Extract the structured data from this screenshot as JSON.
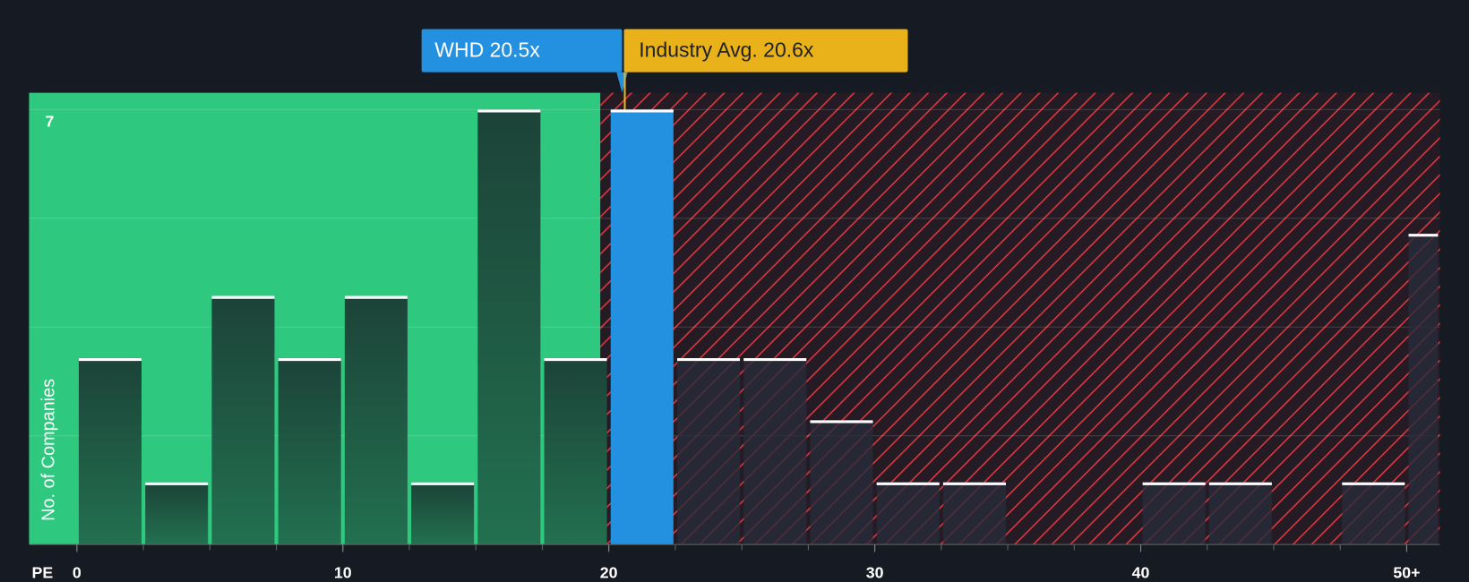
{
  "chart_data": {
    "type": "histogram",
    "xlabel": "PE",
    "ylabel": "No. of Companies",
    "bins": [
      0,
      2.5,
      5,
      7.5,
      10,
      12.5,
      15,
      17.5,
      20,
      22.5,
      25,
      27.5,
      30,
      32.5,
      35,
      37.5,
      40,
      42.5,
      45,
      47.5,
      50,
      51.25
    ],
    "counts": [
      3,
      1,
      4,
      3,
      4,
      1,
      7,
      3,
      7,
      3,
      3,
      2,
      1,
      1,
      0,
      0,
      1,
      1,
      0,
      1,
      5
    ],
    "xlim": [
      -1.8,
      51.25
    ],
    "ylim": [
      0,
      7.27
    ],
    "xticks": [
      0,
      10,
      20,
      30,
      40,
      {
        "value": 50,
        "label": "50+"
      }
    ],
    "yticks": [
      7
    ],
    "annotations": [
      {
        "label": "WHD 20.5x",
        "value": 20.5,
        "color": "#2391e0"
      },
      {
        "label": "Industry Avg. 20.6x",
        "value": 20.6,
        "color": "#e9b21a"
      }
    ],
    "below_color": "#2ec87e",
    "above_color": "#e0383e"
  }
}
